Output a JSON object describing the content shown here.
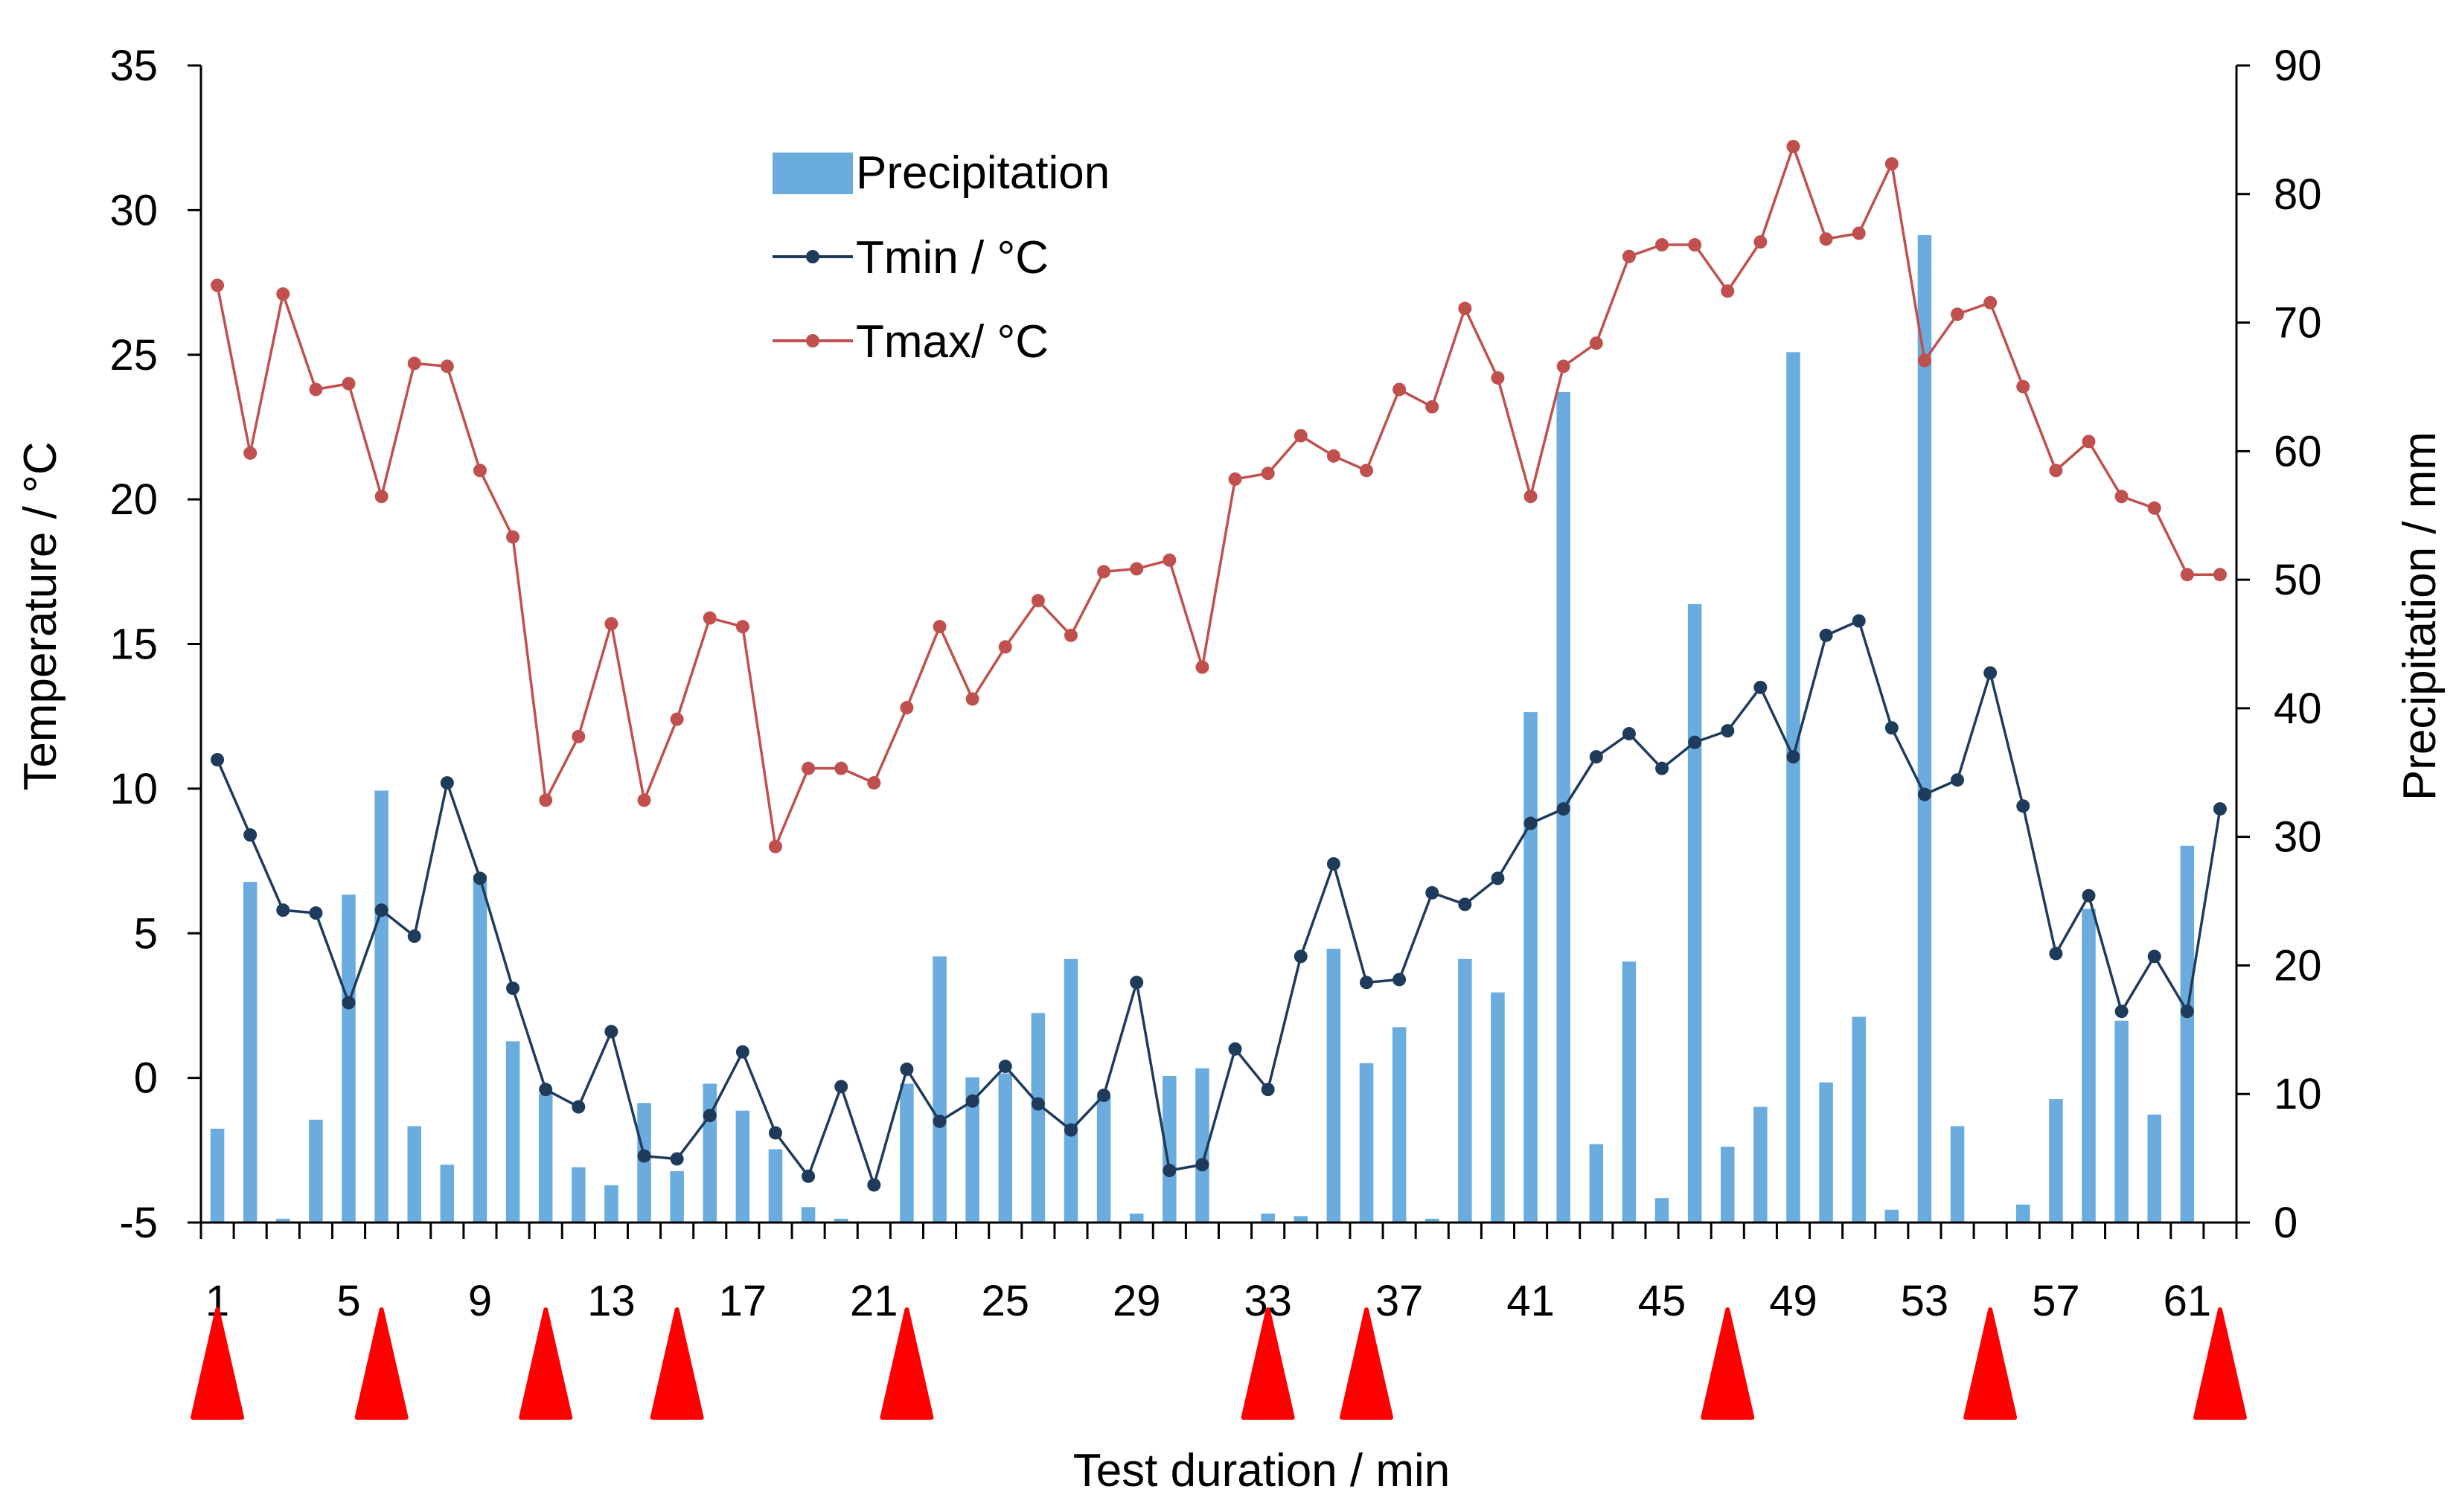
{
  "chart_data": {
    "type": "bar+line",
    "title": "",
    "xlabel": "Test duration  / min",
    "ylabel_left": "Temperature  / °C",
    "ylabel_right": "Precipitation / mm",
    "ylim_left": [
      -5,
      35
    ],
    "ylim_right": [
      0,
      90
    ],
    "yticks_left": [
      -5,
      0,
      5,
      10,
      15,
      20,
      25,
      30,
      35
    ],
    "yticks_right": [
      0,
      10,
      20,
      30,
      40,
      50,
      60,
      70,
      80,
      90
    ],
    "x": [
      1,
      2,
      3,
      4,
      5,
      6,
      7,
      8,
      9,
      10,
      11,
      12,
      13,
      14,
      15,
      16,
      17,
      18,
      19,
      20,
      21,
      22,
      23,
      24,
      25,
      26,
      27,
      28,
      29,
      30,
      31,
      32,
      33,
      34,
      35,
      36,
      37,
      38,
      39,
      40,
      41,
      42,
      43,
      44,
      45,
      46,
      47,
      48,
      49,
      50,
      51,
      52,
      53,
      54,
      55,
      56,
      57,
      58,
      59,
      60,
      61,
      62
    ],
    "x_tick_labels": [
      "1",
      "5",
      "9",
      "13",
      "17",
      "21",
      "25",
      "29",
      "33",
      "37",
      "41",
      "45",
      "49",
      "53",
      "57",
      "61"
    ],
    "legend": {
      "placement": "top-center",
      "entries": [
        "Precipitation",
        "Tmin / °C",
        "Tmax/ °C"
      ]
    },
    "series": [
      {
        "name": "Precipitation",
        "type": "bar",
        "axis": "right",
        "color": "#6AACDE",
        "values": [
          7.3,
          26.5,
          0.3,
          8.0,
          25.5,
          33.6,
          7.5,
          4.5,
          27.0,
          14.1,
          10.0,
          4.3,
          2.9,
          9.3,
          4.0,
          10.8,
          8.7,
          5.7,
          1.2,
          0.3,
          0,
          10.8,
          20.7,
          11.3,
          11.6,
          16.3,
          20.5,
          9.8,
          0.7,
          11.4,
          12.0,
          0,
          0.7,
          0.5,
          21.3,
          12.4,
          15.2,
          0.3,
          20.5,
          17.9,
          39.7,
          64.6,
          6.1,
          20.3,
          1.9,
          48.1,
          5.9,
          9.0,
          67.7,
          10.9,
          16.0,
          1.0,
          76.8,
          7.5,
          0,
          1.4,
          9.6,
          24.4,
          15.7,
          8.4,
          29.3,
          0
        ]
      },
      {
        "name": "Tmin / °C",
        "type": "line",
        "axis": "left",
        "color": "#1F3B5C",
        "values": [
          11.0,
          8.4,
          5.8,
          5.7,
          2.6,
          5.8,
          4.9,
          10.2,
          6.9,
          3.1,
          -0.4,
          -1.0,
          1.6,
          -2.7,
          -2.8,
          -1.3,
          0.9,
          -1.9,
          -3.4,
          -0.3,
          -3.7,
          0.3,
          -1.5,
          -0.8,
          0.4,
          -0.9,
          -1.8,
          -0.6,
          3.3,
          -3.2,
          -3.0,
          1.0,
          -0.4,
          4.2,
          7.4,
          3.3,
          3.4,
          6.4,
          6.0,
          6.9,
          8.8,
          9.3,
          11.1,
          11.9,
          10.7,
          11.6,
          12.0,
          13.5,
          11.1,
          15.3,
          15.8,
          12.1,
          9.8,
          10.3,
          14.0,
          9.4,
          4.3,
          6.3,
          2.3,
          4.2,
          2.3,
          9.3
        ]
      },
      {
        "name": "Tmax/ °C",
        "type": "line",
        "axis": "left",
        "color": "#C0504D",
        "values": [
          27.4,
          21.6,
          27.1,
          23.8,
          24.0,
          20.1,
          24.7,
          24.6,
          21.0,
          18.7,
          9.6,
          11.8,
          15.7,
          9.6,
          12.4,
          15.9,
          15.6,
          8.0,
          10.7,
          10.7,
          10.2,
          12.8,
          15.6,
          13.1,
          14.9,
          16.5,
          15.3,
          17.5,
          17.6,
          17.9,
          14.2,
          20.7,
          20.9,
          22.2,
          21.5,
          21.0,
          23.8,
          23.2,
          26.6,
          24.2,
          20.1,
          24.6,
          25.4,
          28.4,
          28.8,
          28.8,
          27.2,
          28.9,
          32.2,
          29.0,
          29.2,
          31.6,
          24.8,
          26.4,
          26.8,
          23.9,
          21.0,
          22.0,
          20.1,
          19.7,
          17.4,
          17.4
        ]
      }
    ],
    "annotations": {
      "marker": "red-triangle",
      "color": "#FF0000",
      "at_x": [
        1,
        6,
        11,
        15,
        22,
        33,
        36,
        47,
        55,
        62
      ]
    }
  }
}
